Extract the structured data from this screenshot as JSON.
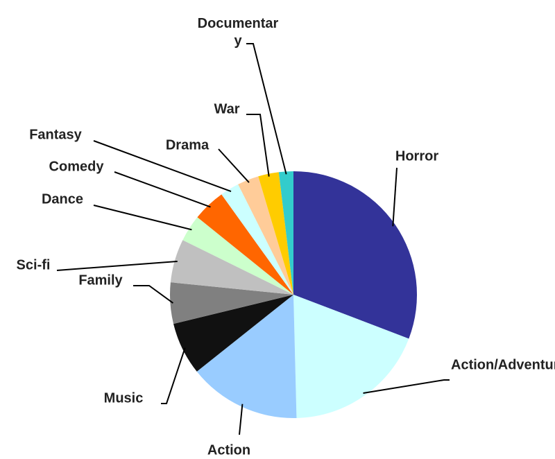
{
  "chart_data": {
    "type": "pie",
    "categories": [
      "Horror",
      "Action/Adventure",
      "Action",
      "Music",
      "Family",
      "Sci-fi",
      "Dance",
      "Comedy",
      "Fantasy",
      "Drama",
      "War",
      "Documentary"
    ],
    "values": [
      30.8,
      18.8,
      14.7,
      6.9,
      5.4,
      5.7,
      3.5,
      4.3,
      2.5,
      2.8,
      2.7,
      1.9
    ],
    "colors": [
      "#333399",
      "#ccffff",
      "#99ccff",
      "#111111",
      "#808080",
      "#c0c0c0",
      "#ccffcc",
      "#ff6600",
      "#ccffff",
      "#ffcc99",
      "#ffcc00",
      "#33cccc"
    ]
  }
}
